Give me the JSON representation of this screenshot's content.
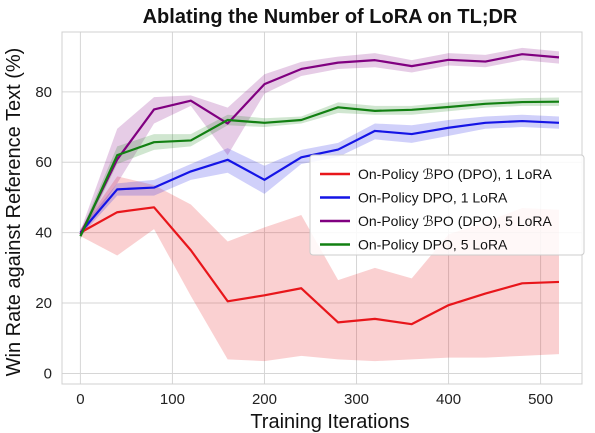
{
  "chart_data": {
    "type": "line",
    "title": "Ablating the Number of LoRA on TL;DR",
    "xlabel": "Training Iterations",
    "ylabel": "Win Rate against Reference Text (%)",
    "xlim": [
      -20,
      545
    ],
    "ylim": [
      -3,
      97
    ],
    "xticks": [
      0,
      100,
      200,
      300,
      400,
      500
    ],
    "yticks": [
      0,
      20,
      40,
      60,
      80
    ],
    "grid": true,
    "legend_position": "center-right",
    "x": [
      0,
      40,
      80,
      120,
      160,
      200,
      240,
      280,
      320,
      360,
      400,
      440,
      480,
      520
    ],
    "series": [
      {
        "name": "On-Policy ℬPO (DPO), 1 LoRA",
        "color": "#e8161b",
        "values": [
          40,
          45.8,
          47.2,
          35,
          20.5,
          22.2,
          24.2,
          14.5,
          15.5,
          14,
          19.4,
          22.7,
          25.6,
          26
        ],
        "lower": [
          39,
          33.5,
          41,
          22,
          4,
          3.5,
          5,
          4,
          3.5,
          4,
          4.5,
          4.5,
          5,
          5.5
        ],
        "upper": [
          41,
          56,
          53.5,
          48,
          37.5,
          41.5,
          45,
          26.5,
          30,
          27,
          39.5,
          43,
          47,
          46.5
        ]
      },
      {
        "name": "On-Policy DPO, 1 LoRA",
        "color": "#1414e6",
        "values": [
          40,
          52.3,
          52.8,
          57.4,
          60.7,
          55,
          61.4,
          63.6,
          68.9,
          68,
          69.8,
          71.2,
          71.7,
          71.2
        ],
        "lower": [
          39,
          50.5,
          50.5,
          55,
          57,
          51,
          59.5,
          61.5,
          66.5,
          65.5,
          67.5,
          69.5,
          70,
          69.5
        ],
        "upper": [
          41,
          54,
          55,
          59.5,
          64,
          59,
          63.5,
          65.5,
          71,
          70.5,
          72,
          73,
          73.5,
          73
        ]
      },
      {
        "name": "On-Policy ℬPO (DPO), 5 LoRA",
        "color": "#800080",
        "values": [
          39.5,
          60.8,
          75,
          77.5,
          71,
          82.2,
          86.5,
          88.3,
          89,
          87.3,
          89.1,
          88.6,
          90.7,
          89.8
        ],
        "lower": [
          38.5,
          54,
          71,
          76,
          62,
          79.5,
          84.5,
          86.5,
          87,
          85.5,
          87.5,
          87,
          89,
          88
        ],
        "upper": [
          40.5,
          69.5,
          78.5,
          79,
          75.5,
          85,
          88.5,
          90,
          91,
          89,
          91,
          90.5,
          92.5,
          91.5
        ]
      },
      {
        "name": "On-Policy DPO, 5 LoRA",
        "color": "#128012",
        "values": [
          39,
          62,
          65.7,
          66.2,
          72,
          71.2,
          72,
          75.6,
          74.6,
          74.9,
          75.7,
          76.6,
          77.1,
          77.2
        ],
        "lower": [
          38,
          59.5,
          63.5,
          64.5,
          70.5,
          70,
          71,
          74,
          73.5,
          73.5,
          74.5,
          75.5,
          76,
          76
        ],
        "upper": [
          40,
          64.5,
          68,
          68,
          73.5,
          72.5,
          73,
          77,
          76,
          76,
          77,
          77.8,
          78.2,
          78.4
        ]
      }
    ]
  }
}
